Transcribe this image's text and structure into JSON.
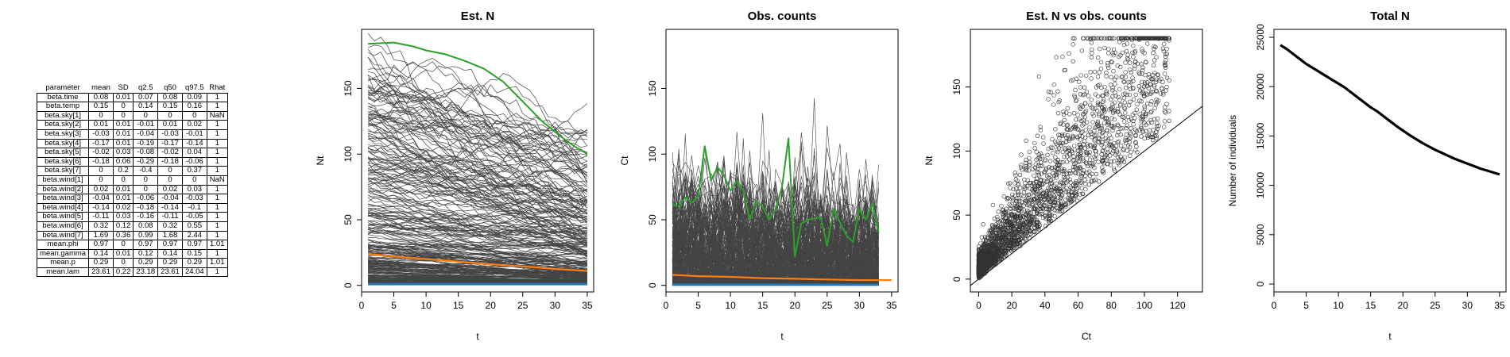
{
  "param_table": {
    "columns": [
      "parameter",
      "mean",
      "SD",
      "q2.5",
      "q50",
      "q97.5",
      "Rhat"
    ],
    "rows": [
      [
        "beta.time",
        "0.08",
        "0.01",
        "0.07",
        "0.08",
        "0.09",
        "1"
      ],
      [
        "beta.temp",
        "0.15",
        "0",
        "0.14",
        "0.15",
        "0.16",
        "1"
      ],
      [
        "beta.sky[1]",
        "0",
        "0",
        "0",
        "0",
        "0",
        "NaN"
      ],
      [
        "beta.sky[2]",
        "0.01",
        "0.01",
        "-0.01",
        "0.01",
        "0.02",
        "1"
      ],
      [
        "beta.sky[3]",
        "-0.03",
        "0.01",
        "-0.04",
        "-0.03",
        "-0.01",
        "1"
      ],
      [
        "beta.sky[4]",
        "-0.17",
        "0.01",
        "-0.19",
        "-0.17",
        "-0.14",
        "1"
      ],
      [
        "beta.sky[5]",
        "-0.02",
        "0.03",
        "-0.08",
        "-0.02",
        "0.04",
        "1"
      ],
      [
        "beta.sky[6]",
        "-0.18",
        "0.06",
        "-0.29",
        "-0.18",
        "-0.06",
        "1"
      ],
      [
        "beta.sky[7]",
        "0",
        "0.2",
        "-0.4",
        "0",
        "0.37",
        "1"
      ],
      [
        "beta.wind[1]",
        "0",
        "0",
        "0",
        "0",
        "0",
        "NaN"
      ],
      [
        "beta.wind[2]",
        "0.02",
        "0.01",
        "0",
        "0.02",
        "0.03",
        "1"
      ],
      [
        "beta.wind[3]",
        "-0.04",
        "0.01",
        "-0.06",
        "-0.04",
        "-0.03",
        "1"
      ],
      [
        "beta.wind[4]",
        "-0.14",
        "0.02",
        "-0.18",
        "-0.14",
        "-0.1",
        "1"
      ],
      [
        "beta.wind[5]",
        "-0.11",
        "0.03",
        "-0.16",
        "-0.11",
        "-0.05",
        "1"
      ],
      [
        "beta.wind[6]",
        "0.32",
        "0.12",
        "0.08",
        "0.32",
        "0.55",
        "1"
      ],
      [
        "beta.wind[7]",
        "1.69",
        "0.36",
        "0.99",
        "1.68",
        "2.44",
        "1"
      ],
      [
        "mean.phi",
        "0.97",
        "0",
        "0.97",
        "0.97",
        "0.97",
        "1.01"
      ],
      [
        "mean.gamma",
        "0.14",
        "0.01",
        "0.12",
        "0.14",
        "0.15",
        "1"
      ],
      [
        "mean.p",
        "0.29",
        "0",
        "0.29",
        "0.29",
        "0.29",
        "1.01"
      ],
      [
        "mean.lam",
        "23.61",
        "0.22",
        "23.18",
        "23.61",
        "24.04",
        "1"
      ]
    ]
  },
  "colors": {
    "trajectories": "#444444",
    "highlight": "#2ca02c",
    "mean": "#ff7f0e",
    "low": "#1f77b4",
    "axis": "#000000"
  },
  "chart_data": [
    {
      "type": "line",
      "title": "Est. N",
      "xlabel": "t",
      "ylabel": "Nt",
      "xlim": [
        0,
        36
      ],
      "ylim": [
        -5,
        195
      ],
      "xticks": [
        0,
        5,
        10,
        15,
        20,
        25,
        30,
        35
      ],
      "yticks": [
        0,
        50,
        100,
        150
      ],
      "note": "many grey site trajectories over t = 1..35 with one highlighted site (green), the mean (orange) and a low band (blue)",
      "highlight": {
        "x": [
          1,
          5,
          8,
          10,
          13,
          16,
          19,
          22,
          25,
          28,
          31,
          33,
          35
        ],
        "values": [
          184,
          185,
          182,
          179,
          176,
          171,
          165,
          155,
          140,
          125,
          113,
          106,
          100
        ]
      },
      "mean_line": {
        "x": [
          1,
          5,
          10,
          15,
          20,
          25,
          30,
          35
        ],
        "values": [
          24,
          22,
          20,
          18,
          16,
          14.5,
          12.5,
          11
        ]
      },
      "low_line": {
        "x": [
          1,
          35
        ],
        "values": [
          1,
          1
        ]
      }
    },
    {
      "type": "line",
      "title": "Obs. counts",
      "xlabel": "t",
      "ylabel": "Ct",
      "xlim": [
        0,
        36
      ],
      "ylim": [
        -5,
        195
      ],
      "xticks": [
        0,
        5,
        10,
        15,
        20,
        25,
        30,
        35
      ],
      "yticks": [
        0,
        50,
        100,
        150
      ],
      "highlight": {
        "x": [
          1,
          2,
          3,
          4,
          5,
          6,
          7,
          8,
          9,
          10,
          11,
          12,
          13,
          14,
          15,
          16,
          17,
          18,
          19,
          20,
          21,
          22,
          23,
          24,
          25,
          26,
          27,
          28,
          29,
          30,
          31,
          32,
          33
        ],
        "values": [
          62,
          60,
          67,
          63,
          68,
          106,
          80,
          90,
          84,
          72,
          80,
          72,
          50,
          64,
          60,
          50,
          58,
          75,
          112,
          22,
          47,
          50,
          51,
          52,
          30,
          58,
          48,
          38,
          33,
          58,
          50,
          62,
          40
        ]
      },
      "mean_line": {
        "x": [
          1,
          5,
          10,
          15,
          20,
          25,
          30,
          35
        ],
        "values": [
          8,
          7,
          6.5,
          5.5,
          5,
          4.5,
          4,
          4
        ]
      },
      "low_line": {
        "x": [
          1,
          33
        ],
        "values": [
          0.5,
          0.5
        ]
      }
    },
    {
      "type": "scatter",
      "title": "Est. N vs obs. counts",
      "xlabel": "Ct",
      "ylabel": "Nt",
      "xlim": [
        -5,
        135
      ],
      "ylim": [
        -10,
        195
      ],
      "xticks": [
        0,
        20,
        40,
        60,
        80,
        100,
        120
      ],
      "yticks": [
        0,
        50,
        100,
        150
      ],
      "reference_line": {
        "label": "1:1",
        "from": [
          -5,
          -5
        ],
        "to": [
          135,
          135
        ]
      },
      "note": "thousands of open-circle points; Nt generally >= Ct"
    },
    {
      "type": "line",
      "title": "Total N",
      "xlabel": "t",
      "ylabel": "Number of individuals",
      "xlim": [
        0,
        36
      ],
      "ylim": [
        -800,
        25800
      ],
      "xticks": [
        0,
        5,
        10,
        15,
        20,
        25,
        30,
        35
      ],
      "yticks": [
        0,
        5000,
        10000,
        15000,
        20000,
        25000
      ],
      "x": [
        1,
        2,
        3,
        4,
        5,
        6,
        7,
        8,
        9,
        10,
        11,
        12,
        13,
        14,
        15,
        16,
        17,
        18,
        19,
        20,
        21,
        22,
        23,
        24,
        25,
        26,
        27,
        28,
        29,
        30,
        31,
        32,
        33,
        34,
        35
      ],
      "values": [
        24200,
        23800,
        23300,
        22800,
        22300,
        21900,
        21500,
        21100,
        20700,
        20300,
        19900,
        19400,
        18900,
        18400,
        17900,
        17500,
        17000,
        16500,
        16000,
        15550,
        15100,
        14700,
        14300,
        13950,
        13600,
        13300,
        13000,
        12700,
        12450,
        12200,
        11950,
        11700,
        11500,
        11300,
        11100
      ]
    }
  ]
}
